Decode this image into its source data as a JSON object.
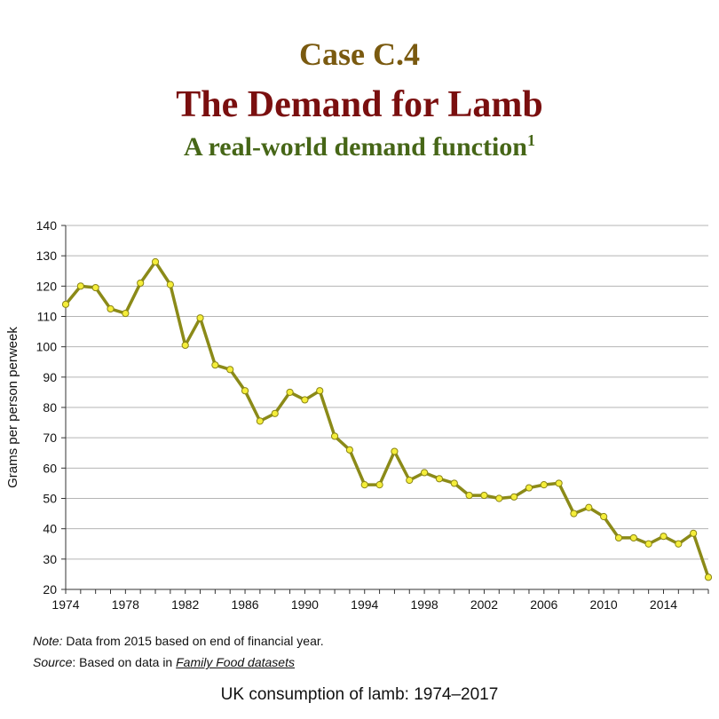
{
  "header": {
    "case": "Case C.4",
    "title": "The Demand for Lamb",
    "subtitle": "A real-world demand function",
    "subtitle_sup": "1"
  },
  "footer": {
    "note_label": "Note:",
    "note_text": " Data from 2015 based on end of financial year.",
    "source_label": "Source",
    "source_text": ": Based on data in ",
    "source_link": "Family Food datasets",
    "caption": "UK consumption of lamb: 1974–2017"
  },
  "chart_data": {
    "type": "line",
    "ylabel": "Grams per person perweek",
    "xlabel": "",
    "xlim": [
      1974,
      2017
    ],
    "ylim": [
      20,
      140
    ],
    "xticks": [
      1974,
      1978,
      1982,
      1986,
      1990,
      1994,
      1998,
      2002,
      2006,
      2010,
      2014
    ],
    "yticks": [
      20,
      30,
      40,
      50,
      60,
      70,
      80,
      90,
      100,
      110,
      120,
      130,
      140
    ],
    "grid": "horizontal",
    "line_color": "#8b8a18",
    "marker_color": "#f5ee3a",
    "series": [
      {
        "x": [
          1974,
          1975,
          1976,
          1977,
          1978,
          1979,
          1980,
          1981,
          1982,
          1983,
          1984,
          1985,
          1986,
          1987,
          1988,
          1989,
          1990,
          1991,
          1992,
          1993,
          1994,
          1995,
          1996,
          1997,
          1998,
          1999,
          2000,
          2001,
          2002,
          2003,
          2004,
          2005,
          2006,
          2007,
          2008,
          2009,
          2010,
          2011,
          2012,
          2013,
          2014,
          2015,
          2016,
          2017
        ],
        "values": [
          114,
          120,
          119.5,
          112.5,
          111,
          121,
          128,
          120.5,
          100.5,
          109.5,
          94,
          92.5,
          85.5,
          75.5,
          78,
          85,
          82.5,
          85.5,
          70.5,
          66,
          54.5,
          54.5,
          65.5,
          56,
          58.5,
          56.5,
          55,
          51,
          51,
          50,
          50.5,
          53.5,
          54.5,
          55,
          45,
          47,
          44,
          37,
          37,
          35,
          37.5,
          35,
          38.5,
          24
        ]
      }
    ]
  }
}
